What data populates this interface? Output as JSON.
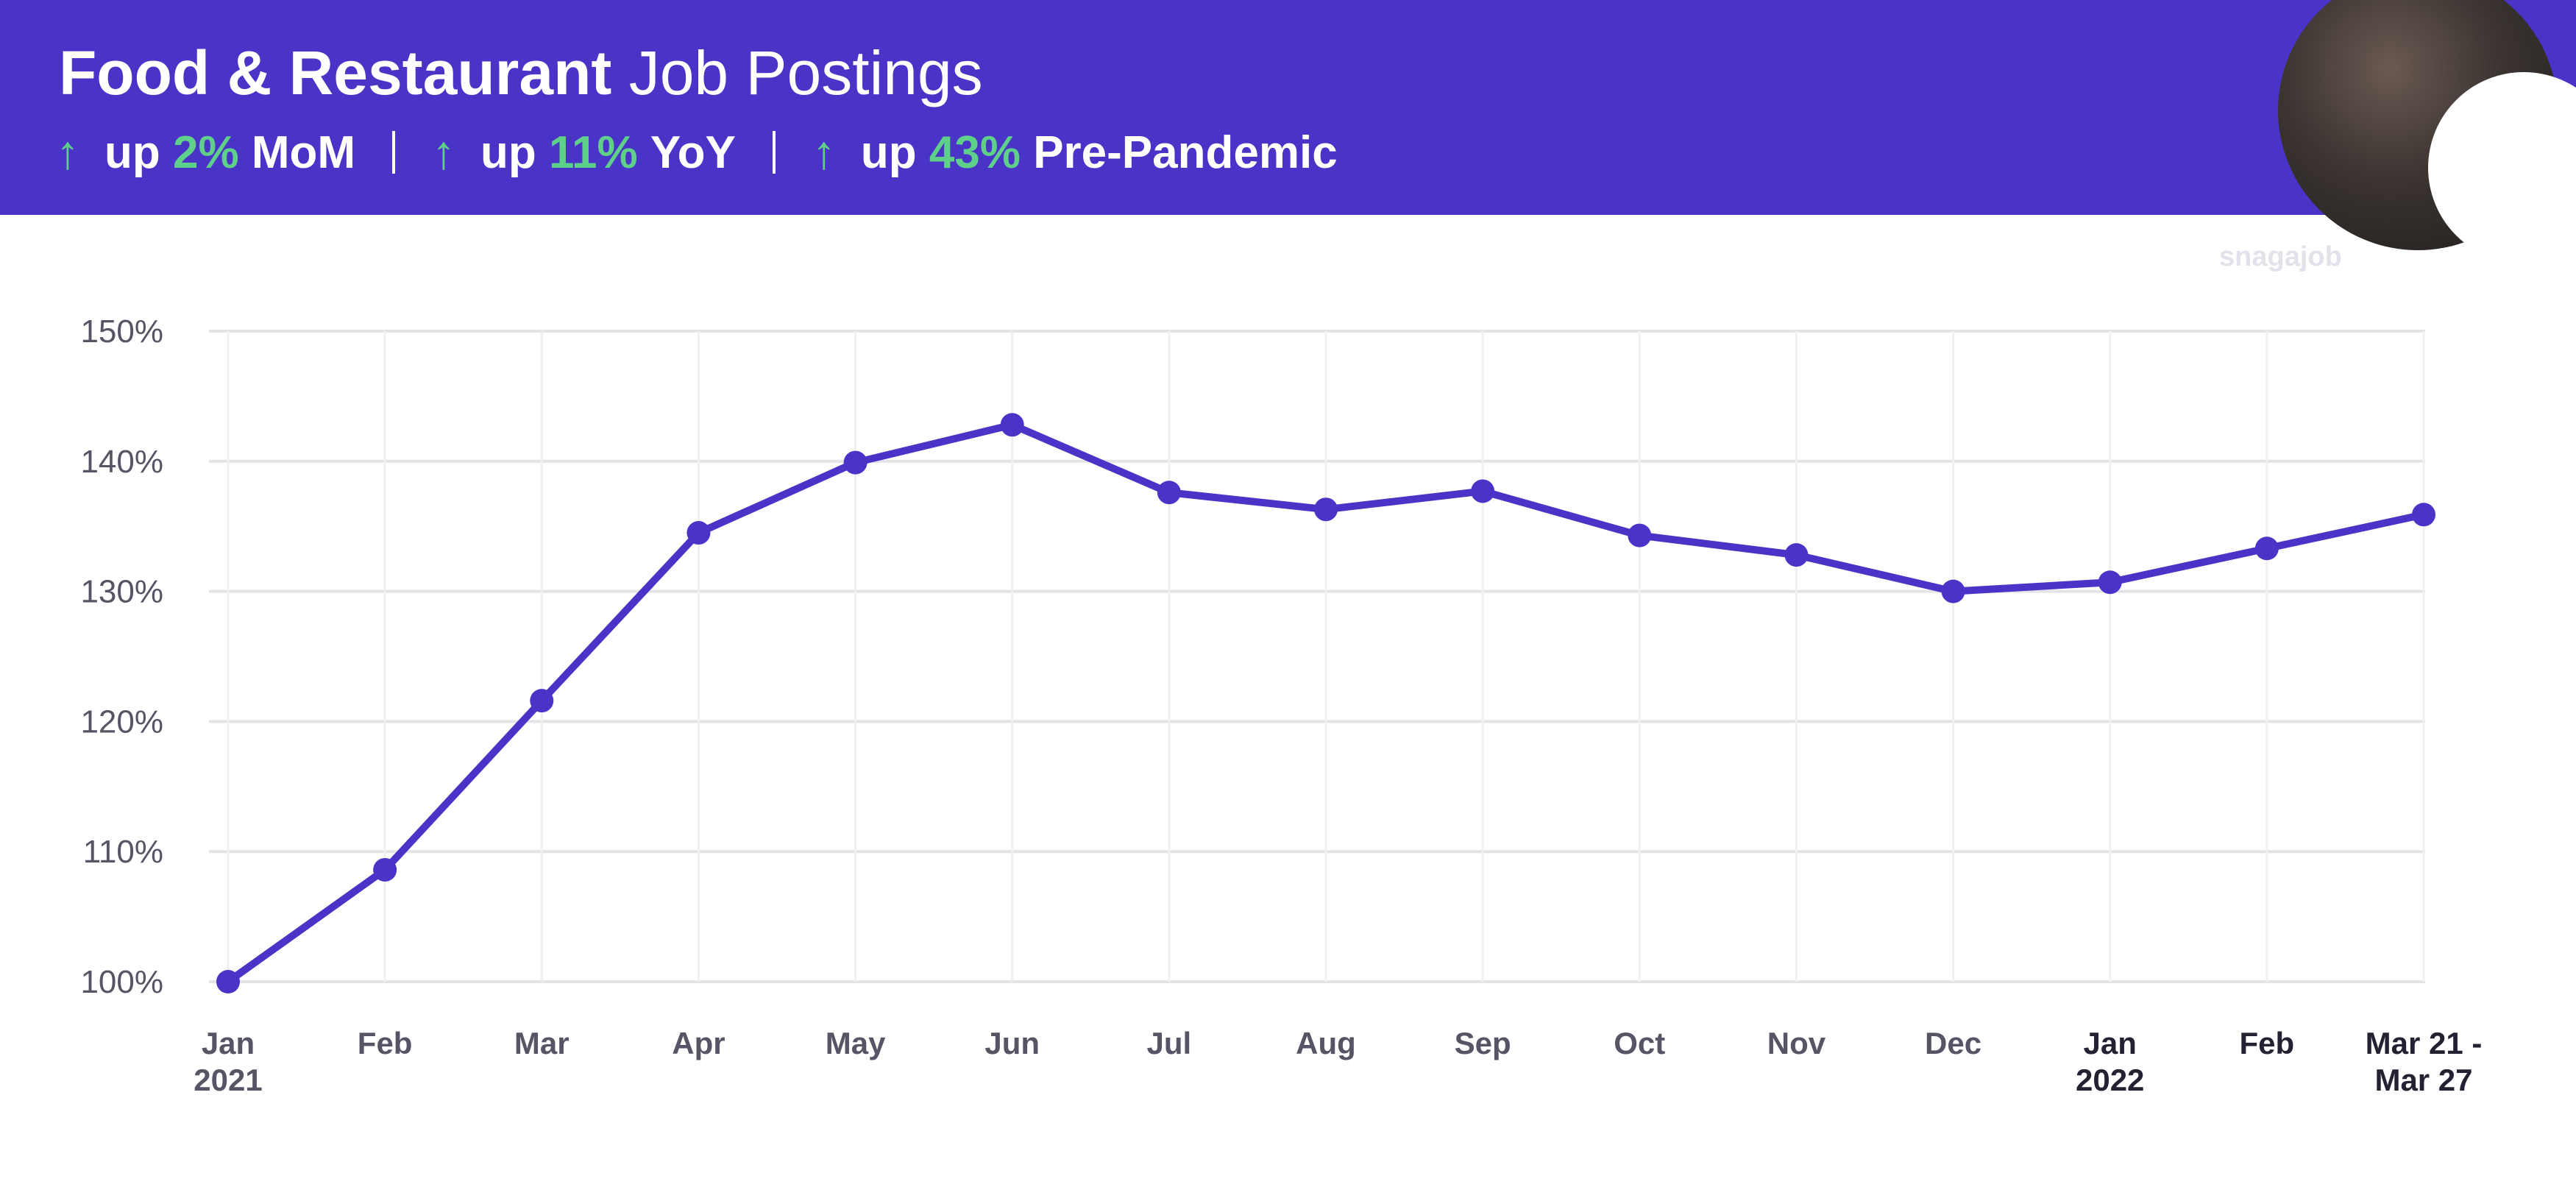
{
  "header": {
    "title_bold": "Food & Restaurant",
    "title_light": "Job Postings",
    "stats": [
      {
        "arrow": "↑",
        "prefix": "up",
        "pct": "2%",
        "label": "MoM"
      },
      {
        "arrow": "↑",
        "prefix": "up",
        "pct": "11%",
        "label": "YoY"
      },
      {
        "arrow": "↑",
        "prefix": "up",
        "pct": "43%",
        "label": "Pre-Pandemic"
      }
    ]
  },
  "brand": {
    "watermark": "snagajob"
  },
  "colors": {
    "header_bg": "#4a34c8",
    "accent_green": "#5fd08a",
    "line": "#4a34c8"
  },
  "chart_data": {
    "type": "line",
    "title": "",
    "xlabel": "",
    "ylabel": "",
    "ylim": [
      100,
      150
    ],
    "yticks": [
      "150%",
      "140%",
      "130%",
      "120%",
      "110%",
      "100%"
    ],
    "grid": true,
    "categories": [
      [
        "Jan",
        "2021"
      ],
      [
        "Feb"
      ],
      [
        "Mar"
      ],
      [
        "Apr"
      ],
      [
        "May"
      ],
      [
        "Jun"
      ],
      [
        "Jul"
      ],
      [
        "Aug"
      ],
      [
        "Sep"
      ],
      [
        "Oct"
      ],
      [
        "Nov"
      ],
      [
        "Dec"
      ],
      [
        "Jan",
        "2022"
      ],
      [
        "Feb"
      ],
      [
        "Mar 21 -",
        "Mar 27"
      ]
    ],
    "values": [
      100,
      108.6,
      121.6,
      134.5,
      139.9,
      142.8,
      137.6,
      136.3,
      137.7,
      134.3,
      132.8,
      130.0,
      130.7,
      133.3,
      135.9
    ]
  }
}
